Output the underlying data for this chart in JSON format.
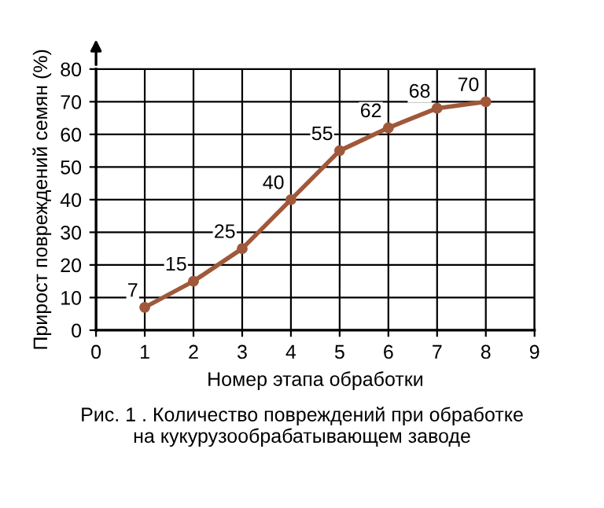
{
  "chart_data": {
    "type": "line",
    "xlabel": "Номер этапа обработки",
    "ylabel": "Прирост повреждений семян (%)",
    "x": [
      1,
      2,
      3,
      4,
      5,
      6,
      7,
      8
    ],
    "series": [
      {
        "color": "#a0583a",
        "values": [
          7,
          15,
          25,
          40,
          55,
          62,
          68,
          70
        ]
      }
    ],
    "xlim": [
      0,
      9
    ],
    "xticks": [
      0,
      1,
      2,
      3,
      4,
      5,
      6,
      7,
      8,
      9
    ],
    "ylim": [
      0,
      80
    ],
    "yticks": [
      0,
      10,
      20,
      30,
      40,
      50,
      60,
      70,
      80
    ],
    "grid": true,
    "marker": "circle",
    "line_style": "solid",
    "data_labels": true,
    "annotations": [
      "Рис. 1 . Количество повреждений при обработке\nна кукурузообрабатывающем заводе"
    ]
  }
}
